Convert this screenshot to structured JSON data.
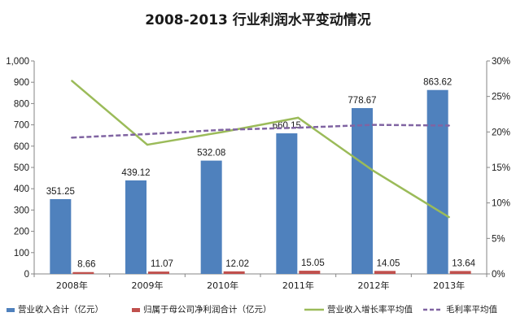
{
  "chart_data": {
    "type": "bar",
    "title": "2008-2013 行业利润水平变动情况",
    "categories": [
      "2008年",
      "2009年",
      "2010年",
      "2011年",
      "2012年",
      "2013年"
    ],
    "series": [
      {
        "name": "营业收入合计（亿元）",
        "kind": "bar",
        "axis": "left",
        "color": "#4f81bd",
        "values": [
          351.25,
          439.12,
          532.08,
          660.15,
          778.67,
          863.62
        ]
      },
      {
        "name": "归属于母公司净利润合计（亿元）",
        "kind": "bar",
        "axis": "left",
        "color": "#c0504d",
        "values": [
          8.66,
          11.07,
          12.02,
          15.05,
          14.05,
          13.64
        ]
      },
      {
        "name": "营业收入增长率平均值",
        "kind": "line",
        "axis": "right",
        "color": "#9bbb59",
        "values": [
          0.272,
          0.182,
          0.2,
          0.22,
          0.145,
          0.08
        ]
      },
      {
        "name": "毛利率平均值",
        "kind": "line",
        "axis": "right",
        "color": "#8064a2",
        "dash": true,
        "values": [
          0.192,
          0.197,
          0.203,
          0.206,
          0.21,
          0.209
        ]
      }
    ],
    "y_left": {
      "ylim": [
        0,
        1000
      ],
      "ticks": [
        "0",
        "100",
        "200",
        "300",
        "400",
        "500",
        "600",
        "700",
        "800",
        "900",
        "1,000"
      ]
    },
    "y_right": {
      "ylim": [
        0,
        0.3
      ],
      "ticks": [
        "0%",
        "5%",
        "10%",
        "15%",
        "20%",
        "25%",
        "30%"
      ]
    },
    "grid": false,
    "legend_position": "bottom"
  }
}
